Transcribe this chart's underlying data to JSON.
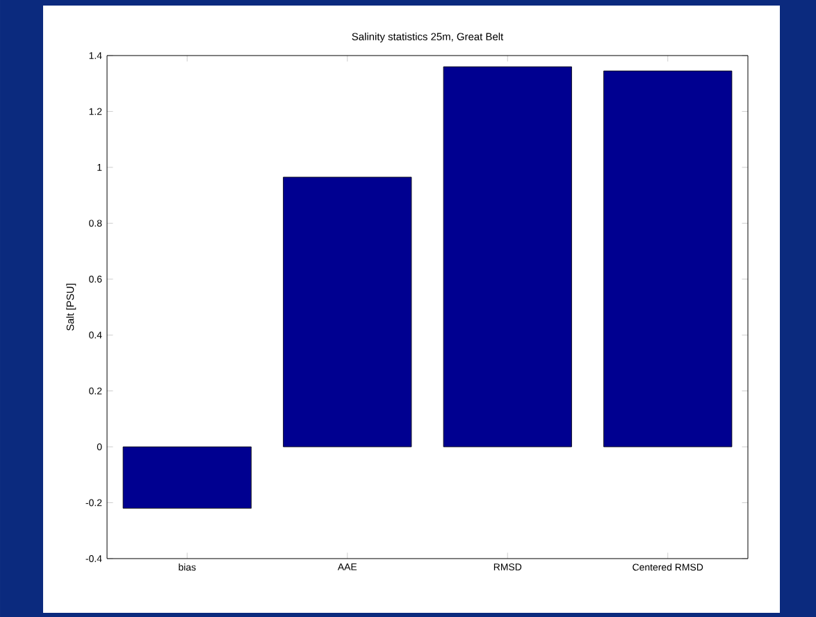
{
  "chart_data": {
    "type": "bar",
    "title": "Salinity statistics 25m, Great Belt",
    "ylabel": "Salt [PSU]",
    "categories": [
      "bias",
      "AAE",
      "RMSD",
      "Centered RMSD"
    ],
    "values": [
      -0.22,
      0.965,
      1.36,
      1.345
    ],
    "color": "#000090",
    "ylim": [
      -0.4,
      1.4
    ],
    "yticks": [
      -0.4,
      -0.2,
      0,
      0.2,
      0.4,
      0.6,
      0.8,
      1,
      1.2,
      1.4
    ],
    "grid": false
  }
}
